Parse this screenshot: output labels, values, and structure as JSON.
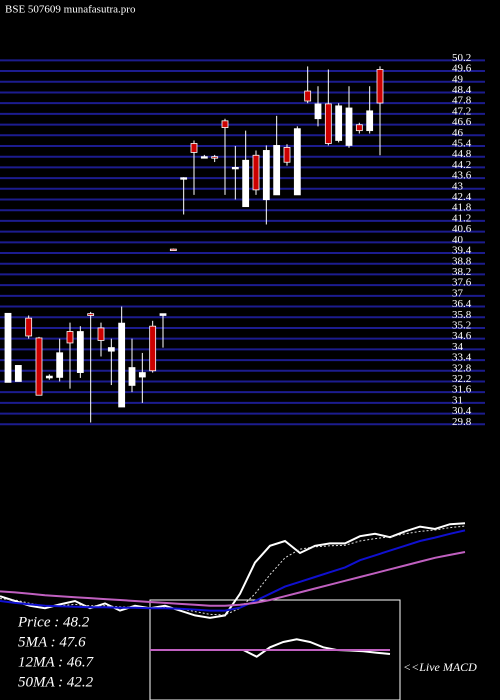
{
  "chart_data": [
    {
      "type": "candlestick",
      "title": "BSE 507609 munafasutra.pro",
      "open": [
        32.15,
        32.2,
        35.75,
        34.64,
        32.4,
        32.43,
        35.0,
        32.7,
        36.0,
        35.2,
        33.9,
        30.77,
        31.98,
        32.45,
        35.3,
        35.9,
        39.62,
        43.6,
        45.54,
        44.77,
        44.8,
        46.81,
        44.16,
        42.0,
        44.88,
        42.39,
        42.66,
        45.32,
        42.66,
        48.48,
        46.93,
        47.76,
        45.71,
        45.43,
        46.59,
        46.26,
        49.69
      ],
      "high": [
        36.02,
        33.1,
        35.9,
        34.7,
        32.6,
        34.6,
        35.5,
        35.3,
        36.1,
        35.5,
        34.6,
        36.4,
        34.6,
        33.8,
        35.6,
        36.0,
        39.65,
        43.65,
        45.71,
        44.9,
        44.9,
        46.93,
        45.4,
        46.26,
        45.15,
        45.43,
        47.09,
        45.5,
        46.5,
        49.86,
        48.75,
        49.69,
        47.8,
        48.75,
        46.7,
        48.75,
        49.86
      ],
      "low": [
        32.15,
        32.2,
        34.6,
        31.43,
        32.3,
        32.2,
        31.8,
        32.4,
        29.9,
        33.6,
        32.0,
        30.77,
        31.6,
        31.0,
        32.7,
        34.1,
        39.57,
        41.56,
        42.66,
        44.7,
        44.5,
        42.66,
        42.4,
        42.0,
        42.66,
        41.0,
        42.66,
        44.3,
        42.66,
        47.8,
        46.5,
        45.43,
        45.6,
        45.3,
        46.1,
        46.1,
        44.88
      ],
      "close": [
        36.02,
        33.1,
        34.75,
        31.43,
        32.5,
        33.81,
        34.36,
        35.0,
        35.9,
        34.5,
        34.1,
        35.47,
        32.98,
        32.7,
        32.8,
        36.0,
        39.6,
        43.62,
        45.04,
        44.8,
        44.77,
        46.43,
        44.2,
        44.6,
        42.94,
        45.15,
        45.43,
        44.49,
        46.37,
        47.92,
        47.76,
        45.54,
        47.65,
        47.53,
        46.26,
        47.37,
        47.81
      ],
      "up_color": "#ffffff",
      "down_color": "#cc0000",
      "grid_color": "#1c1c8e",
      "ylim": [
        29.2,
        50.5
      ],
      "yticks": [
        29.8,
        30.4,
        31,
        31.6,
        32.2,
        32.8,
        33.4,
        34,
        34.6,
        35.2,
        35.8,
        36.4,
        37,
        37.6,
        38.2,
        38.8,
        39.4,
        40,
        40.6,
        41.2,
        41.8,
        42.4,
        43,
        43.6,
        44.2,
        44.8,
        45.4,
        46,
        46.6,
        47.2,
        47.8,
        48.4,
        49,
        49.6,
        50.2
      ],
      "grid": true
    },
    {
      "type": "line",
      "series": [
        {
          "name": "Price",
          "color": "#ffffff",
          "values": [
            33,
            32,
            31,
            30.5,
            31.3,
            32,
            30.5,
            31.5,
            30,
            31,
            30.5,
            31,
            30,
            29,
            28.5,
            29,
            33.5,
            40,
            43.5,
            44.5,
            42,
            43.5,
            44,
            44,
            45.5,
            46,
            45.3,
            46.5,
            47.5,
            47,
            48,
            48.2
          ]
        },
        {
          "name": "5MA",
          "color": "#dddddd",
          "dash": true,
          "values": [
            32.5,
            32.2,
            31.5,
            31,
            31,
            31.3,
            31,
            31,
            30.8,
            30.7,
            30.6,
            30.7,
            30.4,
            29.8,
            29.2,
            29.1,
            30.5,
            33.5,
            37.5,
            41,
            42.8,
            43.3,
            43.5,
            43.6,
            44.5,
            45,
            45.4,
            46,
            46.5,
            46.8,
            47.3,
            47.6
          ]
        },
        {
          "name": "12MA",
          "color": "#1010d0",
          "values": [
            32,
            31.6,
            31.3,
            31,
            30.9,
            30.8,
            30.7,
            30.7,
            30.6,
            30.6,
            30.5,
            30.5,
            30.4,
            30.2,
            30,
            30,
            30.6,
            32,
            33.5,
            35,
            36,
            37,
            38,
            39,
            40.5,
            41.5,
            42.5,
            43.5,
            44.5,
            45.2,
            46,
            46.7
          ]
        },
        {
          "name": "50MA",
          "color": "#c060c0",
          "values": [
            34,
            33.8,
            33.5,
            33.2,
            33,
            32.8,
            32.6,
            32.4,
            32.2,
            32,
            31.8,
            31.6,
            31.4,
            31.2,
            31,
            31,
            31.2,
            31.6,
            32.2,
            33,
            33.8,
            34.6,
            35.4,
            36.2,
            37,
            37.8,
            38.6,
            39.4,
            40.2,
            41,
            41.6,
            42.2
          ]
        }
      ],
      "ylim": [
        27,
        52
      ],
      "stats": [
        "Price : 48.2",
        "5MA : 47.6",
        "12MA : 46.7",
        "50MA : 42.2"
      ]
    },
    {
      "type": "line",
      "title": "<<Live MACD",
      "series": [
        {
          "name": "MACD",
          "color": "#ffffff",
          "values": [
            0,
            0,
            0,
            0,
            0,
            0,
            0,
            0,
            -0.25,
            0.1,
            0.3,
            0.4,
            0.3,
            0.1,
            0,
            -0.02,
            -0.05,
            -0.1,
            -0.15
          ]
        },
        {
          "name": "Signal",
          "color": "#c060c0",
          "values": [
            0,
            0,
            0,
            0,
            0,
            0,
            0,
            0,
            0,
            0,
            0,
            0,
            0,
            0,
            0,
            0,
            0,
            0,
            0
          ]
        }
      ],
      "ylim": [
        -1.5,
        1.5
      ]
    }
  ]
}
